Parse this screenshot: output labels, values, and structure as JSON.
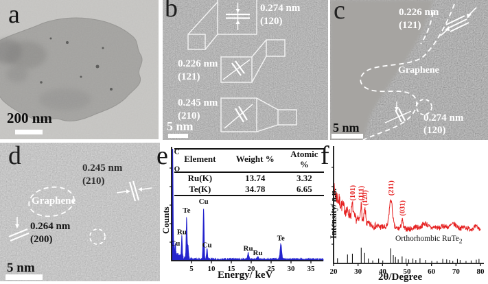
{
  "panels": {
    "a": {
      "label": "a",
      "scale_bar": "200 nm"
    },
    "b": {
      "label": "b",
      "scale_bar": "5 nm",
      "annotations": [
        {
          "d": "0.274 nm",
          "hkl": "(120)"
        },
        {
          "d": "0.226 nm",
          "hkl": "(121)"
        },
        {
          "d": "0.245 nm",
          "hkl": "(210)"
        }
      ]
    },
    "c": {
      "label": "c",
      "scale_bar": "5 nm",
      "graphene_label": "Graphene",
      "annotations": [
        {
          "d": "0.226 nm",
          "hkl": "(121)"
        },
        {
          "d": "0.274 nm",
          "hkl": "(120)"
        }
      ]
    },
    "d": {
      "label": "d",
      "scale_bar": "5 nm",
      "graphene_label": "Graphene",
      "annotations": [
        {
          "d": "0.245 nm",
          "hkl": "(210)"
        },
        {
          "d": "0.264 nm",
          "hkl": "(200)"
        }
      ]
    },
    "e": {
      "label": "e"
    },
    "f": {
      "label": "f"
    }
  },
  "chart_data": [
    {
      "type": "area",
      "name": "eds-spectrum",
      "xlabel": "Energy/ keV",
      "ylabel": "Counts",
      "xlim": [
        0,
        38
      ],
      "xticks": [
        5,
        10,
        15,
        20,
        25,
        30,
        35
      ],
      "color": "#2424cd",
      "table": {
        "headers": [
          "Element",
          "Weight %",
          "Atomic %"
        ],
        "rows": [
          [
            "Ru(K)",
            "13.74",
            "3.32"
          ],
          [
            "Te(K)",
            "34.78",
            "6.65"
          ]
        ]
      },
      "peaks": [
        {
          "element": "C",
          "keV": 0.28,
          "h": 1.0,
          "sigma": 0.09
        },
        {
          "element": "O",
          "keV": 0.53,
          "h": 0.1,
          "sigma": 0.09
        },
        {
          "element": "Cu",
          "keV": 0.93,
          "h": 0.1,
          "sigma": 0.1
        },
        {
          "element": "Ru",
          "keV": 2.56,
          "h": 0.19,
          "sigma": 0.11
        },
        {
          "element": "Te",
          "keV": 3.77,
          "h": 0.36,
          "sigma": 0.12
        },
        {
          "element": "Te",
          "keV": 4.12,
          "h": 0.12,
          "sigma": 0.12
        },
        {
          "element": "Cu",
          "keV": 8.04,
          "h": 0.46,
          "sigma": 0.13
        },
        {
          "element": "Cu",
          "keV": 8.9,
          "h": 0.09,
          "sigma": 0.13
        },
        {
          "element": "Ru",
          "keV": 19.23,
          "h": 0.055,
          "sigma": 0.18
        },
        {
          "element": "Ru",
          "keV": 21.65,
          "h": 0.022,
          "sigma": 0.18
        },
        {
          "element": "Te",
          "keV": 27.45,
          "h": 0.135,
          "sigma": 0.2
        }
      ],
      "annotations": [
        {
          "text": "C",
          "keV": 0.28,
          "yf": 0.955,
          "side": "right"
        },
        {
          "text": "O",
          "keV": 0.28,
          "yf": 0.8,
          "side": "right"
        },
        {
          "text": "Cu",
          "keV": 0.93,
          "yf": 0.135
        },
        {
          "text": "Ru",
          "keV": 2.56,
          "yf": 0.235
        },
        {
          "text": "Te",
          "keV": 3.77,
          "yf": 0.43
        },
        {
          "text": "Cu",
          "keV": 8.04,
          "yf": 0.51
        },
        {
          "text": "Cu",
          "keV": 8.9,
          "yf": 0.12
        },
        {
          "text": "Ru",
          "keV": 19.23,
          "yf": 0.09
        },
        {
          "text": "Ru",
          "keV": 21.65,
          "yf": 0.05
        },
        {
          "text": "Te",
          "keV": 27.45,
          "yf": 0.18
        }
      ]
    },
    {
      "type": "line",
      "name": "xrd-pattern",
      "xlabel": "2θ/Degree",
      "ylabel": "Intensity/ a.u.",
      "xlim": [
        20,
        80
      ],
      "xticks": [
        20,
        30,
        40,
        50,
        60,
        70,
        80
      ],
      "color": "#e51f1f",
      "curve_peaks": [
        {
          "two_theta": 27.7,
          "h": 0.1,
          "sigma": 0.3
        },
        {
          "two_theta": 31.2,
          "h": 0.145,
          "sigma": 0.28
        },
        {
          "two_theta": 32.8,
          "h": 0.115,
          "sigma": 0.33
        },
        {
          "two_theta": 43.4,
          "h": 0.245,
          "sigma": 0.65
        },
        {
          "two_theta": 48.0,
          "h": 0.075,
          "sigma": 0.35
        },
        {
          "two_theta": 53.5,
          "h": 0.02,
          "sigma": 0.8
        },
        {
          "two_theta": 57.3,
          "h": 0.05,
          "sigma": 1.3
        },
        {
          "two_theta": 61.5,
          "h": 0.02,
          "sigma": 1.0
        },
        {
          "two_theta": 65.0,
          "h": 0.03,
          "sigma": 1.0
        },
        {
          "two_theta": 69.0,
          "h": 0.045,
          "sigma": 1.4
        },
        {
          "two_theta": 73.5,
          "h": 0.02,
          "sigma": 1.0
        },
        {
          "two_theta": 78.0,
          "h": 0.02,
          "sigma": 1.0
        }
      ],
      "peak_labels": [
        {
          "text": "(101)",
          "two_theta": 27.7
        },
        {
          "text": "(111)",
          "two_theta": 31.2
        },
        {
          "text": "(120)",
          "two_theta": 32.8
        },
        {
          "text": "(211)",
          "two_theta": 43.4
        },
        {
          "text": "(031)",
          "two_theta": 48.0
        }
      ],
      "reference": {
        "label": "Orthorhombic RuTe",
        "label_sub": "2",
        "sticks": [
          [
            21.6,
            0.3
          ],
          [
            25.7,
            0.55
          ],
          [
            27.7,
            0.6
          ],
          [
            31.3,
            1.0
          ],
          [
            32.7,
            0.65
          ],
          [
            34.2,
            0.28
          ],
          [
            36.0,
            0.15
          ],
          [
            38.4,
            0.28
          ],
          [
            40.1,
            0.15
          ],
          [
            43.3,
            0.95
          ],
          [
            44.4,
            0.5
          ],
          [
            45.3,
            0.38
          ],
          [
            46.4,
            0.22
          ],
          [
            48.0,
            0.42
          ],
          [
            49.6,
            0.28
          ],
          [
            50.7,
            0.22
          ],
          [
            52.4,
            0.28
          ],
          [
            53.6,
            0.18
          ],
          [
            55.3,
            0.3
          ],
          [
            57.6,
            0.18
          ],
          [
            60.1,
            0.12
          ],
          [
            62.3,
            0.1
          ],
          [
            64.6,
            0.25
          ],
          [
            66.2,
            0.22
          ],
          [
            67.4,
            0.18
          ],
          [
            68.7,
            0.12
          ],
          [
            70.6,
            0.25
          ],
          [
            71.7,
            0.18
          ],
          [
            74.1,
            0.12
          ],
          [
            76.2,
            0.15
          ],
          [
            78.3,
            0.2
          ],
          [
            79.4,
            0.25
          ]
        ]
      }
    }
  ]
}
